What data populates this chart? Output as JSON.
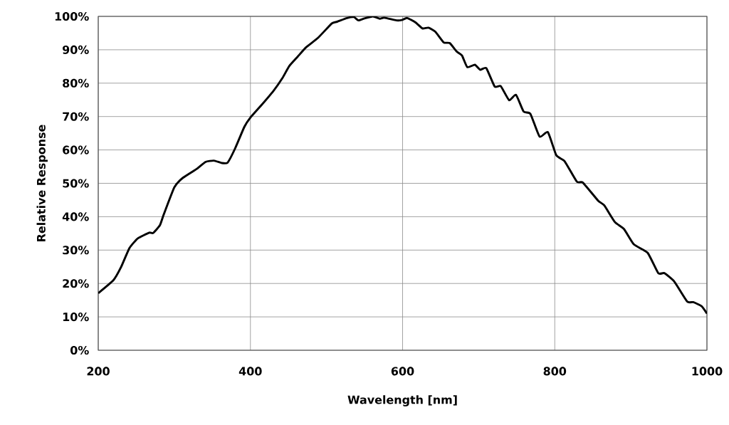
{
  "chart_data": {
    "type": "line",
    "xlabel": "Wavelength [nm]",
    "ylabel": "Relative Response",
    "xlim": [
      200,
      1000
    ],
    "ylim": [
      0,
      100
    ],
    "xticks": [
      200,
      400,
      600,
      800,
      1000
    ],
    "yticks": [
      {
        "value": 0,
        "label": "0%"
      },
      {
        "value": 10,
        "label": "10%"
      },
      {
        "value": 20,
        "label": "20%"
      },
      {
        "value": 30,
        "label": "30%"
      },
      {
        "value": 40,
        "label": "40%"
      },
      {
        "value": 50,
        "label": "50%"
      },
      {
        "value": 60,
        "label": "60%"
      },
      {
        "value": 70,
        "label": "70%"
      },
      {
        "value": 80,
        "label": "80%"
      },
      {
        "value": 90,
        "label": "90%"
      },
      {
        "value": 100,
        "label": "100%"
      }
    ],
    "grid": true,
    "x": [
      200,
      220,
      230,
      241,
      252,
      267,
      272,
      281,
      286,
      300,
      311,
      330,
      341,
      352,
      362,
      370,
      380,
      392,
      400,
      414,
      430,
      442,
      451,
      462,
      473,
      489,
      507,
      514,
      527,
      536,
      542,
      550,
      561,
      570,
      576,
      592,
      599,
      606,
      617,
      626,
      634,
      643,
      654,
      662,
      671,
      678,
      685,
      695,
      702,
      710,
      721,
      729,
      740,
      749,
      759,
      768,
      780,
      791,
      802,
      813,
      829,
      837,
      857,
      865,
      879,
      891,
      904,
      922,
      936,
      944,
      957,
      974,
      982,
      993,
      1000
    ],
    "series": [
      {
        "color": "#000000",
        "values": [
          17.1,
          21.0,
          24.9,
          30.6,
          33.5,
          35.2,
          35.1,
          37.4,
          40.6,
          48.8,
          51.6,
          54.4,
          56.4,
          56.8,
          56.1,
          56.2,
          60.5,
          66.9,
          69.7,
          73.3,
          77.6,
          81.5,
          85.1,
          87.9,
          90.7,
          93.6,
          97.9,
          98.4,
          99.5,
          99.8,
          98.8,
          99.4,
          100,
          99.3,
          99.6,
          98.8,
          98.9,
          99.5,
          98.2,
          96.4,
          96.6,
          95.4,
          92.2,
          92.0,
          89.5,
          88.3,
          84.8,
          85.5,
          84.0,
          84.5,
          79.0,
          79.1,
          74.9,
          76.5,
          71.5,
          70.8,
          64.0,
          65.3,
          58.4,
          56.6,
          50.5,
          50.2,
          44.8,
          43.4,
          38.4,
          36.3,
          31.7,
          29.2,
          23.1,
          23.1,
          20.6,
          14.6,
          14.4,
          13.2,
          11.0
        ]
      }
    ]
  }
}
